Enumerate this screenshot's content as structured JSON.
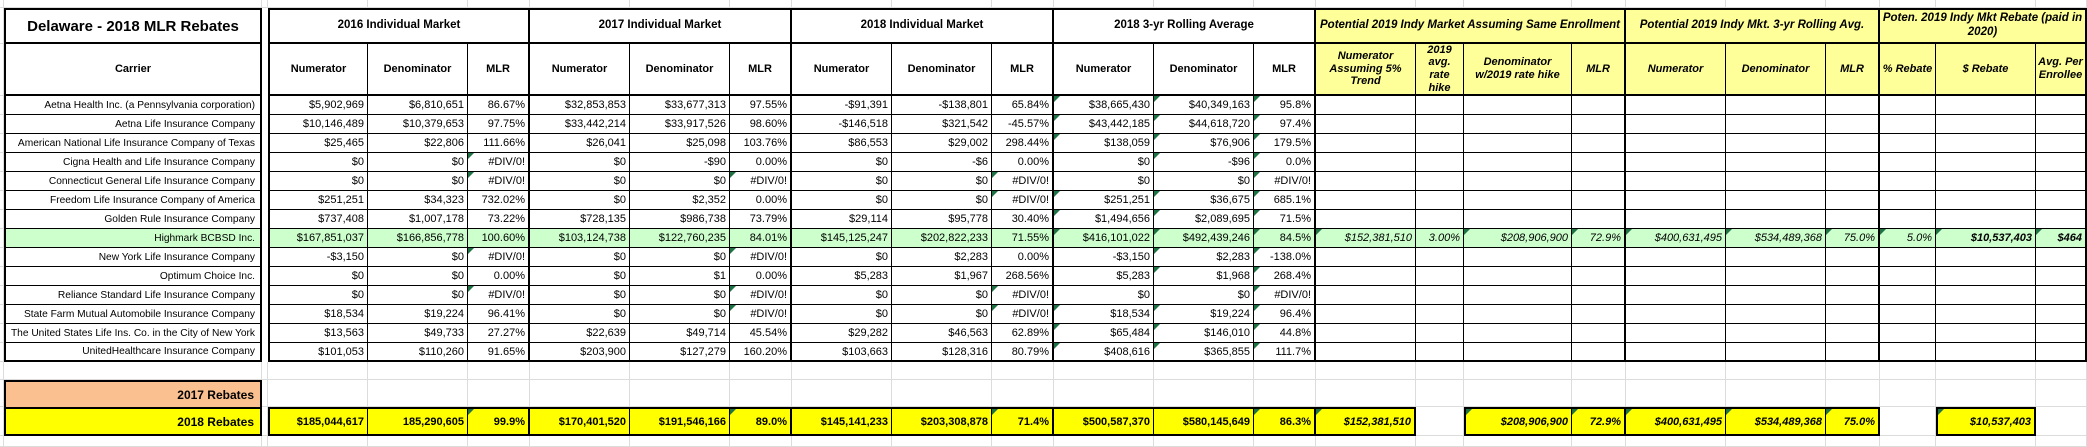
{
  "sheet": {
    "title": "Delaware - 2018 MLR Rebates",
    "carrier_column_header": "Carrier",
    "error_value": "#DIV/0!",
    "colors": {
      "section_yellow": "#FFFF99",
      "rebates_yellow": "#FFFF00",
      "rebates_orange": "#FAC090",
      "highlight_green": "#CCFFCC",
      "flag_green": "#1F7244",
      "gridline": "#DCDCDC"
    },
    "column_groups": [
      {
        "label": "2016 Individual Market",
        "section": "white",
        "columns": [
          "Numerator",
          "Denominator",
          "MLR"
        ]
      },
      {
        "label": "2017 Individual Market",
        "section": "white",
        "columns": [
          "Numerator",
          "Denominator",
          "MLR"
        ]
      },
      {
        "label": "2018 Individual Market",
        "section": "white",
        "columns": [
          "Numerator",
          "Denominator",
          "MLR"
        ]
      },
      {
        "label": "2018 3-yr Rolling Average",
        "section": "white",
        "columns": [
          "Numerator",
          "Denominator",
          "MLR"
        ]
      },
      {
        "label": "Potential 2019 Indy Market Assuming Same Enrollment",
        "section": "yellow",
        "columns": [
          "Numerator Assuming 5% Trend",
          "2019 avg. rate hike",
          "Denominator w/2019 rate hike",
          "MLR"
        ]
      },
      {
        "label": "Potential 2019 Indy Mkt. 3-yr Rolling Avg.",
        "section": "yellow",
        "columns": [
          "Numerator",
          "Denominator",
          "MLR"
        ]
      },
      {
        "label": "Poten. 2019 Indy Mkt Rebate (paid in 2020)",
        "section": "yellow",
        "columns": [
          "% Rebate",
          "$ Rebate",
          "Avg. Per Enrollee"
        ]
      }
    ],
    "rows": [
      {
        "carrier": "Aetna Health Inc. (a Pennsylvania corporation)",
        "highlighted": false,
        "flag_cols": [
          9,
          10,
          11
        ],
        "values": [
          "$5,902,969",
          "$6,810,651",
          "86.67%",
          "$32,853,853",
          "$33,677,313",
          "97.55%",
          "-$91,391",
          "-$138,801",
          "65.84%",
          "$38,665,430",
          "$40,349,163",
          "95.8%",
          "",
          "",
          "",
          "",
          "",
          "",
          "",
          "",
          "",
          ""
        ]
      },
      {
        "carrier": "Aetna Life Insurance Company",
        "highlighted": false,
        "flag_cols": [
          9,
          10,
          11
        ],
        "values": [
          "$10,146,489",
          "$10,379,653",
          "97.75%",
          "$33,442,214",
          "$33,917,526",
          "98.60%",
          "-$146,518",
          "$321,542",
          "-45.57%",
          "$43,442,185",
          "$44,618,720",
          "97.4%",
          "",
          "",
          "",
          "",
          "",
          "",
          "",
          "",
          "",
          ""
        ]
      },
      {
        "carrier": "American National Life Insurance Company of Texas",
        "highlighted": false,
        "flag_cols": [
          9,
          10,
          11
        ],
        "values": [
          "$25,465",
          "$22,806",
          "111.66%",
          "$26,041",
          "$25,098",
          "103.76%",
          "$86,553",
          "$29,002",
          "298.44%",
          "$138,059",
          "$76,906",
          "179.5%",
          "",
          "",
          "",
          "",
          "",
          "",
          "",
          "",
          "",
          ""
        ]
      },
      {
        "carrier": "Cigna Health and Life Insurance Company",
        "highlighted": false,
        "flag_cols": [
          2,
          10,
          11
        ],
        "values": [
          "$0",
          "$0",
          "#DIV/0!",
          "$0",
          "-$90",
          "0.00%",
          "$0",
          "-$6",
          "0.00%",
          "$0",
          "-$96",
          "0.0%",
          "",
          "",
          "",
          "",
          "",
          "",
          "",
          "",
          "",
          ""
        ]
      },
      {
        "carrier": "Connecticut General Life Insurance Company",
        "highlighted": false,
        "flag_cols": [
          2,
          5,
          8,
          11
        ],
        "values": [
          "$0",
          "$0",
          "#DIV/0!",
          "$0",
          "$0",
          "#DIV/0!",
          "$0",
          "$0",
          "#DIV/0!",
          "$0",
          "$0",
          "#DIV/0!",
          "",
          "",
          "",
          "",
          "",
          "",
          "",
          "",
          "",
          ""
        ]
      },
      {
        "carrier": "Freedom Life Insurance Company of America",
        "highlighted": false,
        "flag_cols": [
          8,
          9,
          10,
          11
        ],
        "values": [
          "$251,251",
          "$34,323",
          "732.02%",
          "$0",
          "$2,352",
          "0.00%",
          "$0",
          "$0",
          "#DIV/0!",
          "$251,251",
          "$36,675",
          "685.1%",
          "",
          "",
          "",
          "",
          "",
          "",
          "",
          "",
          "",
          ""
        ]
      },
      {
        "carrier": "Golden Rule Insurance Company",
        "highlighted": false,
        "flag_cols": [
          9,
          10,
          11
        ],
        "values": [
          "$737,408",
          "$1,007,178",
          "73.22%",
          "$728,135",
          "$986,738",
          "73.79%",
          "$29,114",
          "$95,778",
          "30.40%",
          "$1,494,656",
          "$2,089,695",
          "71.5%",
          "",
          "",
          "",
          "",
          "",
          "",
          "",
          "",
          "",
          ""
        ]
      },
      {
        "carrier": "Highmark BCBSD Inc.",
        "highlighted": true,
        "flag_cols": [
          9,
          10,
          11,
          12,
          14,
          15,
          16,
          17,
          18,
          19,
          20,
          21
        ],
        "values": [
          "$167,851,037",
          "$166,856,778",
          "100.60%",
          "$103,124,738",
          "$122,760,235",
          "84.01%",
          "$145,125,247",
          "$202,822,233",
          "71.55%",
          "$416,101,022",
          "$492,439,246",
          "84.5%",
          "$152,381,510",
          "3.00%",
          "$208,906,900",
          "72.9%",
          "$400,631,495",
          "$534,489,368",
          "75.0%",
          "5.0%",
          "$10,537,403",
          "$464"
        ]
      },
      {
        "carrier": "New York Life Insurance Company",
        "highlighted": false,
        "flag_cols": [
          2,
          5,
          10,
          11
        ],
        "values": [
          "-$3,150",
          "$0",
          "#DIV/0!",
          "$0",
          "$0",
          "#DIV/0!",
          "$0",
          "$2,283",
          "0.00%",
          "-$3,150",
          "$2,283",
          "-138.0%",
          "",
          "",
          "",
          "",
          "",
          "",
          "",
          "",
          "",
          ""
        ]
      },
      {
        "carrier": "Optimum Choice Inc.",
        "highlighted": false,
        "flag_cols": [
          10,
          11
        ],
        "values": [
          "$0",
          "$0",
          "0.00%",
          "$0",
          "$1",
          "0.00%",
          "$5,283",
          "$1,967",
          "268.56%",
          "$5,283",
          "$1,968",
          "268.4%",
          "",
          "",
          "",
          "",
          "",
          "",
          "",
          "",
          "",
          ""
        ]
      },
      {
        "carrier": "Reliance Standard Life Insurance Company",
        "highlighted": false,
        "flag_cols": [
          2,
          5,
          8,
          11
        ],
        "values": [
          "$0",
          "$0",
          "#DIV/0!",
          "$0",
          "$0",
          "#DIV/0!",
          "$0",
          "$0",
          "#DIV/0!",
          "$0",
          "$0",
          "#DIV/0!",
          "",
          "",
          "",
          "",
          "",
          "",
          "",
          "",
          "",
          ""
        ]
      },
      {
        "carrier": "State Farm Mutual Automobile Insurance Company",
        "highlighted": false,
        "flag_cols": [
          5,
          8,
          9,
          10,
          11
        ],
        "values": [
          "$18,534",
          "$19,224",
          "96.41%",
          "$0",
          "$0",
          "#DIV/0!",
          "$0",
          "$0",
          "#DIV/0!",
          "$18,534",
          "$19,224",
          "96.4%",
          "",
          "",
          "",
          "",
          "",
          "",
          "",
          "",
          "",
          ""
        ]
      },
      {
        "carrier": "The United States Life Ins. Co. in the City of New York",
        "highlighted": false,
        "flag_cols": [
          9,
          10,
          11
        ],
        "values": [
          "$13,563",
          "$49,733",
          "27.27%",
          "$22,639",
          "$49,714",
          "45.54%",
          "$29,282",
          "$46,563",
          "62.89%",
          "$65,484",
          "$146,010",
          "44.8%",
          "",
          "",
          "",
          "",
          "",
          "",
          "",
          "",
          "",
          ""
        ]
      },
      {
        "carrier": "UnitedHealthcare Insurance Company",
        "highlighted": false,
        "flag_cols": [
          9,
          10,
          11
        ],
        "values": [
          "$101,053",
          "$110,260",
          "91.65%",
          "$203,900",
          "$127,279",
          "160.20%",
          "$103,663",
          "$128,316",
          "80.79%",
          "$408,616",
          "$365,855",
          "111.7%",
          "",
          "",
          "",
          "",
          "",
          "",
          "",
          "",
          "",
          ""
        ]
      }
    ],
    "footer_rows": [
      {
        "label": "2017 Rebates",
        "style": "orange",
        "flag_cols": [],
        "values": [
          "",
          "",
          "",
          "",
          "",
          "",
          "",
          "",
          "",
          "",
          "",
          "",
          "",
          "",
          "",
          "",
          "",
          "",
          "",
          "",
          "",
          ""
        ]
      },
      {
        "label": "2018 Rebates",
        "style": "yellow",
        "flag_cols": [
          2,
          5,
          8,
          11,
          12,
          14,
          15,
          16,
          17,
          18,
          20
        ],
        "values": [
          "$185,044,617",
          "185,290,605",
          "99.9%",
          "$170,401,520",
          "$191,546,166",
          "89.0%",
          "$145,141,233",
          "$203,308,878",
          "71.4%",
          "$500,587,370",
          "$580,145,649",
          "86.3%",
          "$152,381,510",
          "",
          "$208,906,900",
          "72.9%",
          "$400,631,495",
          "$534,489,368",
          "75.0%",
          "",
          "$10,537,403",
          ""
        ]
      }
    ]
  }
}
